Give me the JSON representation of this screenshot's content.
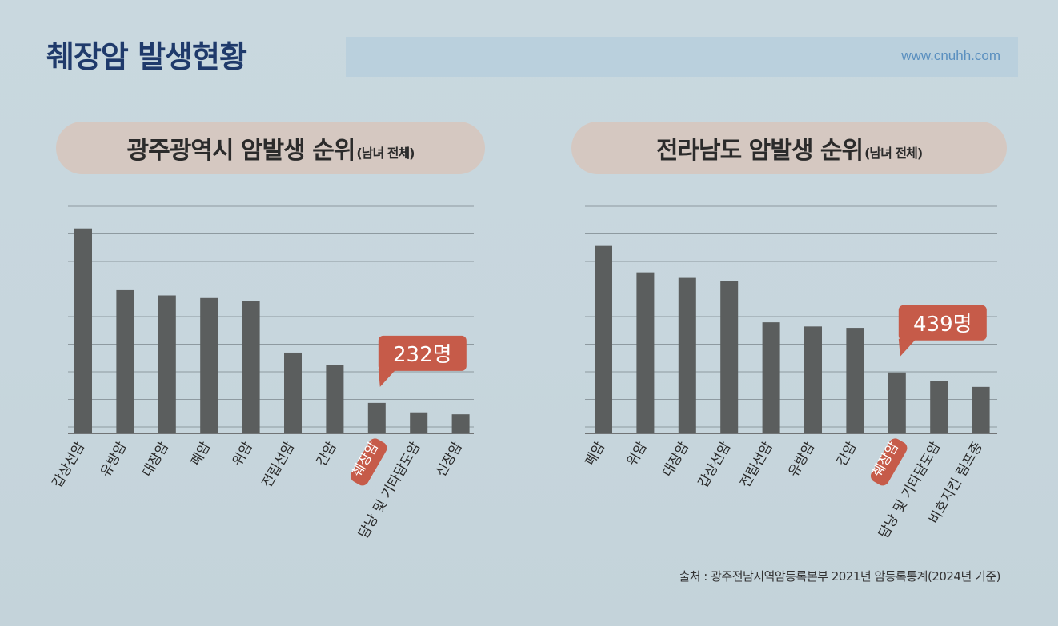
{
  "header": {
    "title": "췌장암 발생현황",
    "website": "www.cnuhh.com"
  },
  "source": "출처 : 광주전남지역암등록본부 2021년 암등록통계(2024년 기준)",
  "colors": {
    "bar": "#5b5e5e",
    "highlight": "#c65b49",
    "grid": "#8e9aa0",
    "title_pill": "#d5c8c1"
  },
  "chart_data": [
    {
      "type": "bar",
      "title": "광주광역시 암발생 순위",
      "subtitle": "(남녀 전체)",
      "categories": [
        "갑상선암",
        "유방암",
        "대장암",
        "폐암",
        "위암",
        "전립선암",
        "간암",
        "췌장암",
        "담낭 및 기타담도암",
        "신장암"
      ],
      "values": [
        1560,
        1090,
        1050,
        1030,
        1005,
        615,
        520,
        232,
        160,
        145
      ],
      "highlight_index": 7,
      "callout": "232명",
      "ylim": [
        0,
        1680
      ],
      "grid": true,
      "xlabel": "",
      "ylabel": ""
    },
    {
      "type": "bar",
      "title": "전라남도 암발생 순위",
      "subtitle": "(남녀 전체)",
      "categories": [
        "폐암",
        "위암",
        "대장암",
        "갑상선암",
        "전립선암",
        "유방암",
        "간암",
        "췌장암",
        "담낭 및 기타담도암",
        "비호지킨 림프종"
      ],
      "values": [
        1350,
        1160,
        1120,
        1095,
        800,
        770,
        760,
        439,
        375,
        335
      ],
      "highlight_index": 7,
      "callout": "439명",
      "ylim": [
        0,
        1590
      ],
      "grid": true,
      "xlabel": "",
      "ylabel": ""
    }
  ]
}
